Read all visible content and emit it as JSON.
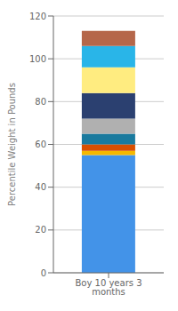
{
  "chart_data": {
    "type": "bar",
    "stacked": true,
    "categories": [
      "Boy 10 years 3 months"
    ],
    "ylabel": "Percentile Weight in Pounds",
    "ylim": [
      0,
      120
    ],
    "yticks": [
      0,
      20,
      40,
      60,
      80,
      100,
      120
    ],
    "grid": true,
    "series": [
      {
        "color": "#4393e8",
        "values": [
          55
        ]
      },
      {
        "color": "#f5b800",
        "values": [
          2
        ]
      },
      {
        "color": "#d94f00",
        "values": [
          3
        ]
      },
      {
        "color": "#1a7a9e",
        "values": [
          5
        ]
      },
      {
        "color": "#b0b0b0",
        "values": [
          7
        ]
      },
      {
        "color": "#2b4070",
        "values": [
          12
        ]
      },
      {
        "color": "#ffec80",
        "values": [
          12
        ]
      },
      {
        "color": "#29b5e8",
        "values": [
          10
        ]
      },
      {
        "color": "#b5674a",
        "values": [
          7
        ]
      }
    ]
  }
}
